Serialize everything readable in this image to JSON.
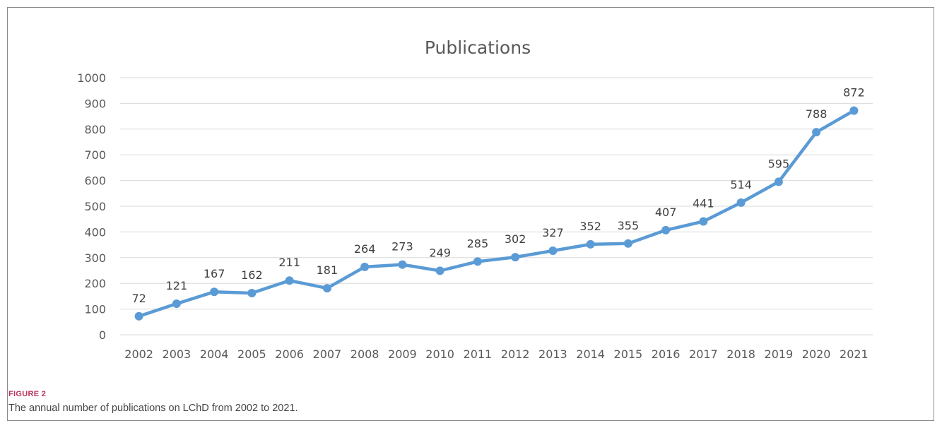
{
  "figure": {
    "label": "FIGURE 2",
    "caption": "The annual number of publications on LChD from 2002 to 2021."
  },
  "colors": {
    "line": "#5b9bd5",
    "grid": "#d9d9d9",
    "text": "#595959"
  },
  "chart_data": {
    "type": "line",
    "title": "Publications",
    "xlabel": "",
    "ylabel": "",
    "categories": [
      "2002",
      "2003",
      "2004",
      "2005",
      "2006",
      "2007",
      "2008",
      "2009",
      "2010",
      "2011",
      "2012",
      "2013",
      "2014",
      "2015",
      "2016",
      "2017",
      "2018",
      "2019",
      "2020",
      "2021"
    ],
    "series": [
      {
        "values": [
          72,
          121,
          167,
          162,
          211,
          181,
          264,
          273,
          249,
          285,
          302,
          327,
          352,
          355,
          407,
          441,
          514,
          595,
          788,
          872
        ]
      }
    ],
    "ylim": [
      0,
      1000
    ],
    "yticks": [
      0,
      100,
      200,
      300,
      400,
      500,
      600,
      700,
      800,
      900,
      1000
    ],
    "grid": true,
    "legend": "none",
    "data_labels": true
  }
}
